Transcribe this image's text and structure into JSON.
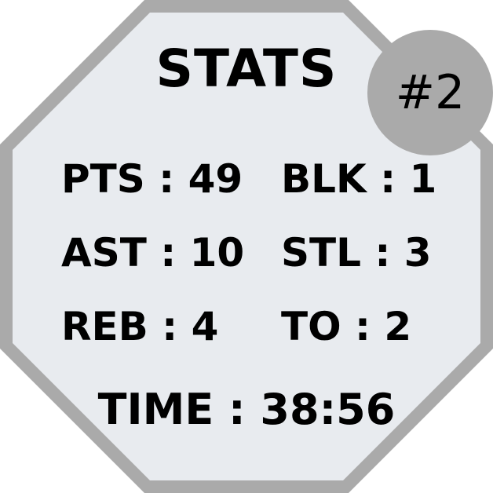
{
  "card": {
    "title": "STATS",
    "badge": "#2",
    "colors": {
      "border": "#aaaaaa",
      "fill": "#e8ebef",
      "badge": "#aaaaaa",
      "text": "#000000"
    }
  },
  "stats": {
    "pts": "PTS : 49",
    "blk": "BLK : 1",
    "ast": "AST : 10",
    "stl": "STL : 3",
    "reb": "REB : 4",
    "to": "TO : 2"
  },
  "time": "TIME : 38:56"
}
